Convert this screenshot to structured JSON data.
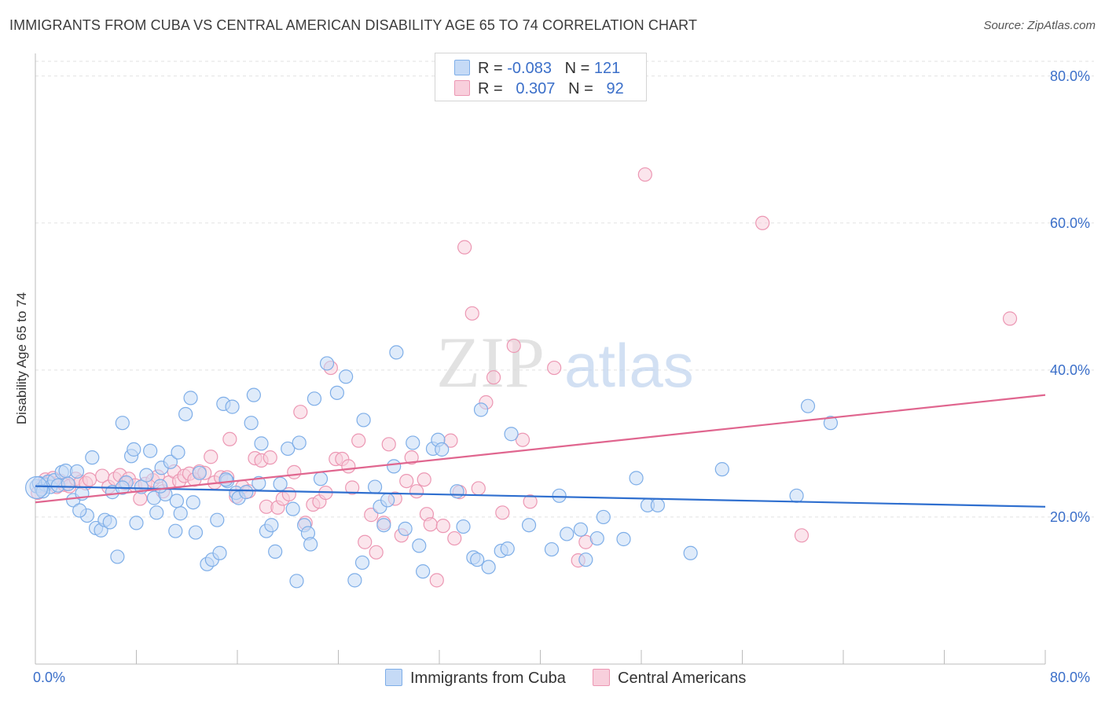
{
  "title": "IMMIGRANTS FROM CUBA VS CENTRAL AMERICAN DISABILITY AGE 65 TO 74 CORRELATION CHART",
  "source": "Source: ZipAtlas.com",
  "watermark": {
    "zip": "ZIP",
    "atlas": "atlas"
  },
  "chart_data": {
    "type": "scatter",
    "ylabel": "Disability Age 65 to 74",
    "xlim": [
      0,
      80
    ],
    "ylim": [
      0,
      82
    ],
    "y_ticks": [
      {
        "value": 20,
        "label": "20.0%"
      },
      {
        "value": 40,
        "label": "40.0%"
      },
      {
        "value": 60,
        "label": "60.0%"
      },
      {
        "value": 80,
        "label": "80.0%"
      }
    ],
    "x_tick_labels": {
      "min": "0.0%",
      "max": "80.0%"
    },
    "grid": true,
    "legend_position": "top-center",
    "series": [
      {
        "name": "Immigrants from Cuba",
        "color": "#7eaee8",
        "fill": "#c5daf6",
        "line_color": "#2f6fcf",
        "R_label": "R = ",
        "R": "-0.083",
        "N_label": "N = ",
        "N": "121",
        "trend": [
          [
            0,
            24.2
          ],
          [
            80,
            21.4
          ]
        ],
        "points": [
          [
            0.1,
            24.2
          ],
          [
            0.3,
            24.6
          ],
          [
            0.5,
            23.8
          ],
          [
            0.8,
            24.4
          ],
          [
            1.0,
            24.8
          ],
          [
            1.2,
            24.1
          ],
          [
            1.5,
            25.0
          ],
          [
            0.6,
            23.5
          ],
          [
            1.8,
            24.3
          ],
          [
            2.1,
            26.1
          ],
          [
            2.4,
            26.3
          ],
          [
            2.6,
            24.5
          ],
          [
            3.0,
            22.3
          ],
          [
            3.3,
            26.2
          ],
          [
            3.7,
            23.2
          ],
          [
            4.1,
            20.2
          ],
          [
            4.5,
            28.1
          ],
          [
            4.8,
            18.5
          ],
          [
            5.2,
            18.2
          ],
          [
            5.5,
            19.6
          ],
          [
            5.9,
            19.3
          ],
          [
            6.1,
            23.4
          ],
          [
            6.5,
            14.6
          ],
          [
            6.9,
            32.8
          ],
          [
            7.2,
            24.7
          ],
          [
            7.6,
            28.3
          ],
          [
            7.8,
            29.2
          ],
          [
            8.0,
            19.2
          ],
          [
            8.4,
            24.1
          ],
          [
            8.8,
            25.7
          ],
          [
            9.1,
            29.0
          ],
          [
            9.4,
            22.6
          ],
          [
            9.6,
            20.6
          ],
          [
            10.0,
            26.7
          ],
          [
            10.3,
            23.1
          ],
          [
            10.7,
            27.5
          ],
          [
            11.1,
            18.1
          ],
          [
            11.3,
            28.8
          ],
          [
            11.5,
            20.5
          ],
          [
            11.9,
            34.0
          ],
          [
            12.3,
            36.2
          ],
          [
            12.5,
            22.0
          ],
          [
            12.7,
            17.9
          ],
          [
            13.0,
            26.0
          ],
          [
            13.6,
            13.6
          ],
          [
            14.0,
            14.2
          ],
          [
            14.4,
            19.6
          ],
          [
            14.6,
            15.1
          ],
          [
            14.9,
            35.4
          ],
          [
            15.2,
            24.9
          ],
          [
            15.6,
            35.0
          ],
          [
            15.9,
            23.3
          ],
          [
            16.1,
            22.6
          ],
          [
            16.7,
            23.4
          ],
          [
            17.1,
            32.8
          ],
          [
            17.3,
            36.6
          ],
          [
            17.7,
            24.6
          ],
          [
            17.9,
            30.0
          ],
          [
            18.3,
            18.1
          ],
          [
            18.7,
            18.9
          ],
          [
            19.0,
            15.3
          ],
          [
            19.4,
            24.5
          ],
          [
            20.0,
            29.3
          ],
          [
            20.4,
            21.1
          ],
          [
            20.7,
            11.3
          ],
          [
            20.9,
            30.1
          ],
          [
            21.3,
            18.9
          ],
          [
            21.6,
            17.8
          ],
          [
            21.8,
            16.3
          ],
          [
            22.1,
            36.1
          ],
          [
            22.6,
            25.2
          ],
          [
            23.1,
            40.9
          ],
          [
            23.9,
            36.9
          ],
          [
            24.6,
            39.1
          ],
          [
            25.3,
            11.4
          ],
          [
            25.9,
            13.8
          ],
          [
            26.0,
            33.2
          ],
          [
            26.9,
            24.1
          ],
          [
            27.3,
            21.4
          ],
          [
            27.6,
            18.9
          ],
          [
            27.9,
            22.3
          ],
          [
            28.4,
            26.9
          ],
          [
            28.6,
            42.4
          ],
          [
            29.3,
            18.4
          ],
          [
            29.9,
            30.1
          ],
          [
            30.4,
            16.1
          ],
          [
            30.7,
            12.6
          ],
          [
            31.5,
            29.3
          ],
          [
            31.9,
            30.5
          ],
          [
            32.2,
            29.2
          ],
          [
            33.4,
            23.5
          ],
          [
            33.9,
            18.7
          ],
          [
            34.7,
            14.5
          ],
          [
            35.0,
            14.2
          ],
          [
            35.3,
            34.6
          ],
          [
            35.9,
            13.2
          ],
          [
            36.9,
            15.4
          ],
          [
            37.4,
            15.7
          ],
          [
            37.7,
            31.3
          ],
          [
            39.1,
            18.9
          ],
          [
            40.9,
            15.6
          ],
          [
            41.5,
            22.9
          ],
          [
            42.1,
            17.7
          ],
          [
            43.2,
            18.3
          ],
          [
            43.6,
            14.2
          ],
          [
            44.5,
            17.1
          ],
          [
            45.0,
            20.0
          ],
          [
            46.6,
            17.0
          ],
          [
            47.6,
            25.3
          ],
          [
            48.5,
            21.6
          ],
          [
            49.3,
            21.6
          ],
          [
            51.9,
            15.1
          ],
          [
            54.4,
            26.5
          ],
          [
            60.3,
            22.9
          ],
          [
            61.2,
            35.1
          ],
          [
            63.0,
            32.8
          ],
          [
            3.5,
            20.9
          ],
          [
            6.9,
            24.0
          ],
          [
            9.9,
            24.2
          ],
          [
            11.2,
            22.2
          ],
          [
            15.1,
            25.1
          ]
        ]
      },
      {
        "name": "Central Americans",
        "color": "#ec97b3",
        "fill": "#f8cfdc",
        "line_color": "#e0668f",
        "R_label": "R = ",
        "R": "0.307",
        "N_label": "N = ",
        "N": "92",
        "trend": [
          [
            0,
            22.0
          ],
          [
            80,
            36.6
          ]
        ],
        "points": [
          [
            0.2,
            23.3
          ],
          [
            0.5,
            24.2
          ],
          [
            0.8,
            25.1
          ],
          [
            1.1,
            24.8
          ],
          [
            1.4,
            25.3
          ],
          [
            1.7,
            24.1
          ],
          [
            2.0,
            24.9
          ],
          [
            2.3,
            24.4
          ],
          [
            2.7,
            24.2
          ],
          [
            3.2,
            25.2
          ],
          [
            3.6,
            24.8
          ],
          [
            4.0,
            24.6
          ],
          [
            4.3,
            25.1
          ],
          [
            5.3,
            25.6
          ],
          [
            5.8,
            24.1
          ],
          [
            6.3,
            25.2
          ],
          [
            6.7,
            25.7
          ],
          [
            7.1,
            24.6
          ],
          [
            7.4,
            25.2
          ],
          [
            7.9,
            24.3
          ],
          [
            8.3,
            22.5
          ],
          [
            8.7,
            24.5
          ],
          [
            9.3,
            25.0
          ],
          [
            9.7,
            25.5
          ],
          [
            10.1,
            23.5
          ],
          [
            10.6,
            24.7
          ],
          [
            11.0,
            26.2
          ],
          [
            11.4,
            24.9
          ],
          [
            11.8,
            25.6
          ],
          [
            12.2,
            25.9
          ],
          [
            12.6,
            25.1
          ],
          [
            13.0,
            26.2
          ],
          [
            13.4,
            26.0
          ],
          [
            13.9,
            28.2
          ],
          [
            14.2,
            24.7
          ],
          [
            14.7,
            25.4
          ],
          [
            15.2,
            25.4
          ],
          [
            15.4,
            30.6
          ],
          [
            15.9,
            22.8
          ],
          [
            16.4,
            24.1
          ],
          [
            16.9,
            23.5
          ],
          [
            17.4,
            28.0
          ],
          [
            17.9,
            27.7
          ],
          [
            18.3,
            21.4
          ],
          [
            18.6,
            28.1
          ],
          [
            19.2,
            21.3
          ],
          [
            19.6,
            22.5
          ],
          [
            20.1,
            23.1
          ],
          [
            20.5,
            26.1
          ],
          [
            21.0,
            34.3
          ],
          [
            21.4,
            19.2
          ],
          [
            22.0,
            21.7
          ],
          [
            22.5,
            22.1
          ],
          [
            23.0,
            23.3
          ],
          [
            23.4,
            40.3
          ],
          [
            23.8,
            27.9
          ],
          [
            24.3,
            27.9
          ],
          [
            24.8,
            26.9
          ],
          [
            25.1,
            24.0
          ],
          [
            25.6,
            30.4
          ],
          [
            26.1,
            16.6
          ],
          [
            26.6,
            20.3
          ],
          [
            27.0,
            15.2
          ],
          [
            27.6,
            19.2
          ],
          [
            28.0,
            29.9
          ],
          [
            28.5,
            22.5
          ],
          [
            29.0,
            17.5
          ],
          [
            29.4,
            24.9
          ],
          [
            29.8,
            28.1
          ],
          [
            30.2,
            23.5
          ],
          [
            30.8,
            25.1
          ],
          [
            31.0,
            20.4
          ],
          [
            31.3,
            19.0
          ],
          [
            31.8,
            11.4
          ],
          [
            32.3,
            18.8
          ],
          [
            32.9,
            30.4
          ],
          [
            33.2,
            17.1
          ],
          [
            33.6,
            23.4
          ],
          [
            34.0,
            56.7
          ],
          [
            34.6,
            47.7
          ],
          [
            35.1,
            23.9
          ],
          [
            35.7,
            35.6
          ],
          [
            36.3,
            39.0
          ],
          [
            37.0,
            20.6
          ],
          [
            37.9,
            43.3
          ],
          [
            38.6,
            30.5
          ],
          [
            39.2,
            22.1
          ],
          [
            41.1,
            40.3
          ],
          [
            43.0,
            14.1
          ],
          [
            43.6,
            16.6
          ],
          [
            48.3,
            66.6
          ],
          [
            57.6,
            60.0
          ]
        ]
      }
    ],
    "extra_outlier_series_2": [
      [
        77.2,
        47.0
      ],
      [
        60.7,
        17.5
      ]
    ]
  }
}
